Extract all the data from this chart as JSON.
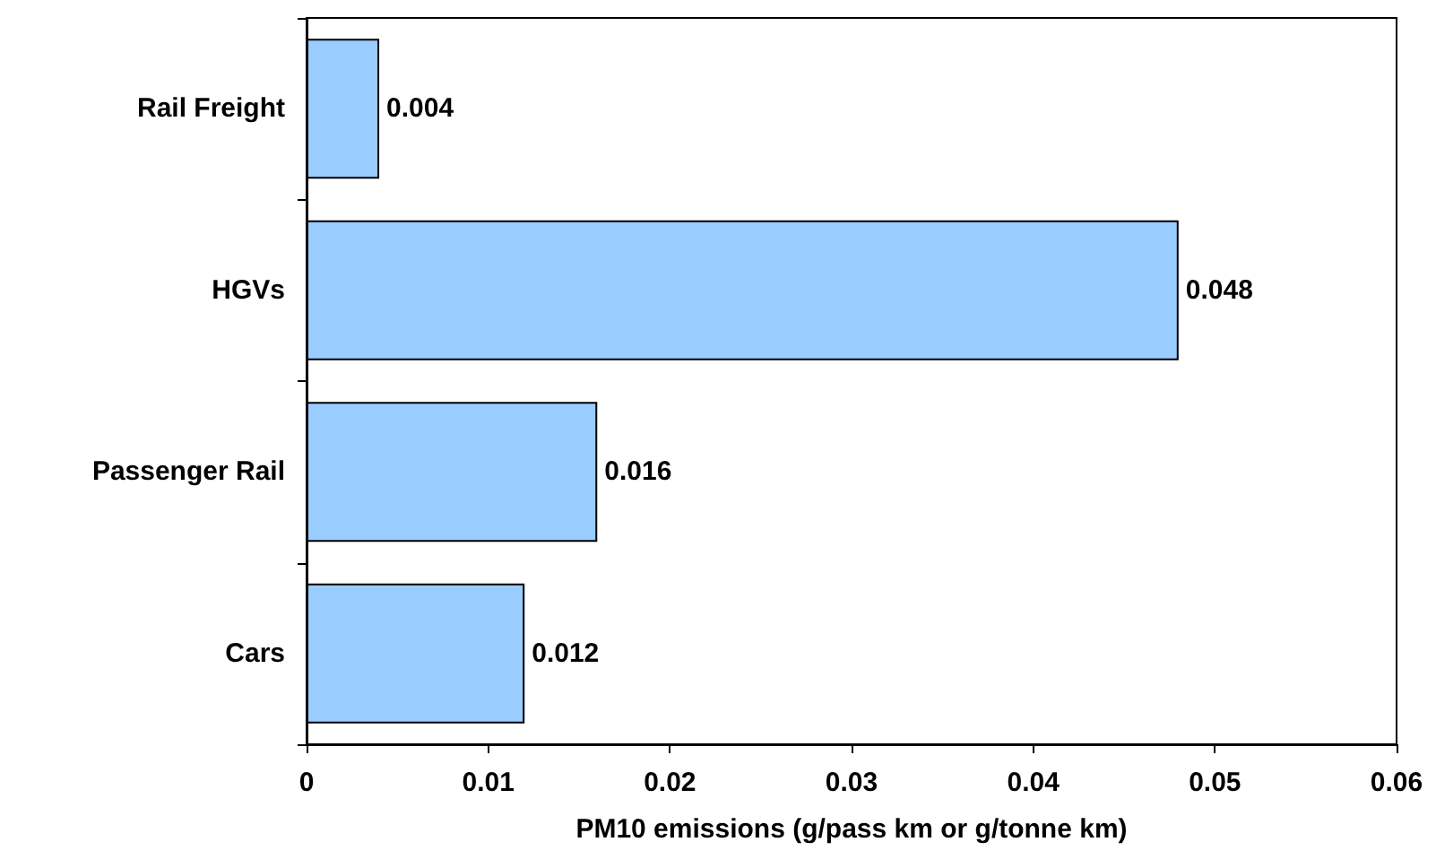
{
  "chart_data": {
    "type": "bar",
    "orientation": "horizontal",
    "categories": [
      "Rail Freight",
      "HGVs",
      "Passenger Rail",
      "Cars"
    ],
    "values": [
      0.004,
      0.048,
      0.016,
      0.012
    ],
    "color": "#99ccff",
    "xlabel": "PM10 emissions (g/pass km or g/tonne km)",
    "xlim": [
      0,
      0.06
    ],
    "xticks": [
      0,
      0.01,
      0.02,
      0.03,
      0.04,
      0.05,
      0.06
    ],
    "data_labels": true
  }
}
